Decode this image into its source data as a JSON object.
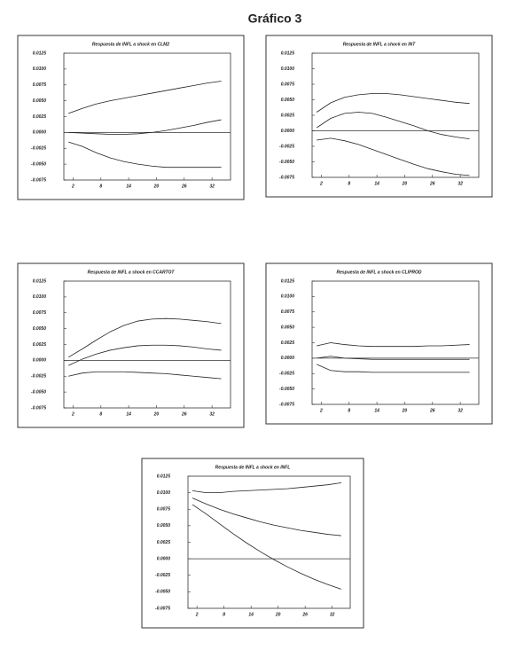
{
  "page_title": "Gráfico 3",
  "chart_data": [
    {
      "type": "line",
      "title": "Respuesta de INFL a shock en CLM2",
      "x": [
        1,
        4,
        7,
        10,
        13,
        16,
        19,
        22,
        25,
        28,
        31,
        34
      ],
      "xlim": [
        0,
        36
      ],
      "xticks": [
        2,
        8,
        14,
        20,
        26,
        32
      ],
      "ylim": [
        -0.0075,
        0.0125
      ],
      "yticks": [
        0.0125,
        {
          "value": 0.01,
          "label": "0.0100"
        },
        0.0075,
        {
          "value": 0.005,
          "label": "0.0050"
        },
        0.0025,
        {
          "value": 0,
          "label": "0.0000"
        },
        -0.0025,
        {
          "value": -0.005,
          "label": "-0.0050"
        },
        -0.0075
      ],
      "series": [
        {
          "color": "#222",
          "values": [
            0.003,
            0.0038,
            0.0045,
            0.005,
            0.0054,
            0.0058,
            0.0062,
            0.0066,
            0.007,
            0.0074,
            0.0078,
            0.0081
          ]
        },
        {
          "color": "#222",
          "values": [
            0.0,
            -0.0001,
            -0.0002,
            -0.0003,
            -0.0003,
            -0.0002,
            0.0,
            0.0003,
            0.0007,
            0.0011,
            0.0016,
            0.002
          ]
        },
        {
          "color": "#222",
          "values": [
            -0.0015,
            -0.0022,
            -0.0032,
            -0.004,
            -0.0046,
            -0.005,
            -0.0053,
            -0.0055,
            -0.0055,
            -0.0055,
            -0.0055,
            -0.0055
          ]
        }
      ]
    },
    {
      "type": "line",
      "title": "Respuesta de INFL a shock en INT",
      "x": [
        1,
        4,
        7,
        10,
        13,
        16,
        19,
        22,
        25,
        28,
        31,
        34
      ],
      "xlim": [
        0,
        36
      ],
      "xticks": [
        2,
        8,
        14,
        20,
        26,
        32
      ],
      "ylim": [
        -0.0075,
        0.0125
      ],
      "yticks": [
        0.0125,
        {
          "value": 0.01,
          "label": "0.0100"
        },
        0.0075,
        {
          "value": 0.005,
          "label": "0.0050"
        },
        0.0025,
        {
          "value": 0,
          "label": "0.0000"
        },
        -0.0025,
        {
          "value": -0.005,
          "label": "-0.0050"
        },
        -0.0075
      ],
      "series": [
        {
          "color": "#222",
          "values": [
            0.003,
            0.0045,
            0.0054,
            0.0058,
            0.006,
            0.006,
            0.0058,
            0.0055,
            0.0052,
            0.0049,
            0.0046,
            0.0044
          ]
        },
        {
          "color": "#222",
          "values": [
            0.0005,
            0.002,
            0.0028,
            0.003,
            0.0028,
            0.0022,
            0.0015,
            0.0008,
            0.0,
            -0.0006,
            -0.001,
            -0.0013
          ]
        },
        {
          "color": "#222",
          "values": [
            -0.0015,
            -0.0012,
            -0.0016,
            -0.0022,
            -0.003,
            -0.0038,
            -0.0046,
            -0.0054,
            -0.0061,
            -0.0066,
            -0.007,
            -0.0072
          ]
        }
      ]
    },
    {
      "type": "line",
      "title": "Respuesta de INFL a shock en CCARTOT",
      "x": [
        1,
        4,
        7,
        10,
        13,
        16,
        19,
        22,
        25,
        28,
        31,
        34
      ],
      "xlim": [
        0,
        36
      ],
      "xticks": [
        2,
        8,
        14,
        20,
        26,
        32
      ],
      "ylim": [
        -0.0075,
        0.0125
      ],
      "yticks": [
        0.0125,
        {
          "value": 0.01,
          "label": "0.0100"
        },
        0.0075,
        {
          "value": 0.005,
          "label": "0.0050"
        },
        0.0025,
        {
          "value": 0,
          "label": "0.0000"
        },
        -0.0025,
        {
          "value": -0.005,
          "label": "-0.0050"
        },
        -0.0075
      ],
      "series": [
        {
          "color": "#222",
          "values": [
            0.0005,
            0.0018,
            0.0032,
            0.0045,
            0.0055,
            0.0062,
            0.0065,
            0.0066,
            0.0065,
            0.0063,
            0.0061,
            0.0058
          ]
        },
        {
          "color": "#222",
          "values": [
            -0.0008,
            0.0002,
            0.001,
            0.0016,
            0.002,
            0.0023,
            0.0024,
            0.0024,
            0.0023,
            0.0021,
            0.0018,
            0.0016
          ]
        },
        {
          "color": "#222",
          "values": [
            -0.0025,
            -0.002,
            -0.0018,
            -0.0018,
            -0.0018,
            -0.0019,
            -0.002,
            -0.0021,
            -0.0023,
            -0.0025,
            -0.0027,
            -0.0029
          ]
        }
      ]
    },
    {
      "type": "line",
      "title": "Respuesta de INFL a shock en CLIPROD",
      "x": [
        1,
        4,
        7,
        10,
        13,
        16,
        19,
        22,
        25,
        28,
        31,
        34
      ],
      "xlim": [
        0,
        36
      ],
      "xticks": [
        2,
        8,
        14,
        20,
        26,
        32
      ],
      "ylim": [
        -0.0075,
        0.0125
      ],
      "yticks": [
        0.0125,
        {
          "value": 0.01,
          "label": "0.0100"
        },
        0.0075,
        {
          "value": 0.005,
          "label": "0.0050"
        },
        0.0025,
        {
          "value": 0,
          "label": "0.0000"
        },
        -0.0025,
        {
          "value": -0.005,
          "label": "-0.0050"
        },
        -0.0075
      ],
      "series": [
        {
          "color": "#222",
          "values": [
            0.002,
            0.0025,
            0.0022,
            0.002,
            0.0019,
            0.0019,
            0.0019,
            0.0019,
            0.002,
            0.002,
            0.0021,
            0.0022
          ]
        },
        {
          "color": "#222",
          "values": [
            0.0,
            0.0003,
            0.0,
            -0.0001,
            -0.0002,
            -0.0002,
            -0.0002,
            -0.0002,
            -0.0002,
            -0.0002,
            -0.0002,
            -0.0002
          ]
        },
        {
          "color": "#222",
          "values": [
            -0.001,
            -0.002,
            -0.0022,
            -0.0022,
            -0.0023,
            -0.0023,
            -0.0023,
            -0.0023,
            -0.0023,
            -0.0023,
            -0.0023,
            -0.0023
          ]
        }
      ]
    },
    {
      "type": "line",
      "title": "Respuesta de INFL a shock en INFL",
      "x": [
        1,
        4,
        7,
        10,
        13,
        16,
        19,
        22,
        25,
        28,
        31,
        34
      ],
      "xlim": [
        0,
        36
      ],
      "xticks": [
        2,
        8,
        14,
        20,
        26,
        32
      ],
      "ylim": [
        -0.0075,
        0.0125
      ],
      "yticks": [
        0.0125,
        {
          "value": 0.01,
          "label": "0.0100"
        },
        0.0075,
        {
          "value": 0.005,
          "label": "0.0050"
        },
        0.0025,
        {
          "value": 0,
          "label": "0.0000"
        },
        -0.0025,
        {
          "value": -0.005,
          "label": "-0.0050"
        },
        -0.0075
      ],
      "series": [
        {
          "color": "#222",
          "values": [
            0.0103,
            0.01,
            0.01,
            0.0102,
            0.0103,
            0.0104,
            0.0105,
            0.0106,
            0.0108,
            0.011,
            0.0112,
            0.0115
          ]
        },
        {
          "color": "#222",
          "values": [
            0.0092,
            0.0083,
            0.0075,
            0.0068,
            0.0062,
            0.0056,
            0.0051,
            0.0047,
            0.0043,
            0.004,
            0.0037,
            0.0035
          ]
        },
        {
          "color": "#222",
          "values": [
            0.0082,
            0.0068,
            0.0053,
            0.0038,
            0.0024,
            0.0011,
            -0.0001,
            -0.0012,
            -0.0022,
            -0.0031,
            -0.0039,
            -0.0046
          ]
        }
      ]
    }
  ]
}
